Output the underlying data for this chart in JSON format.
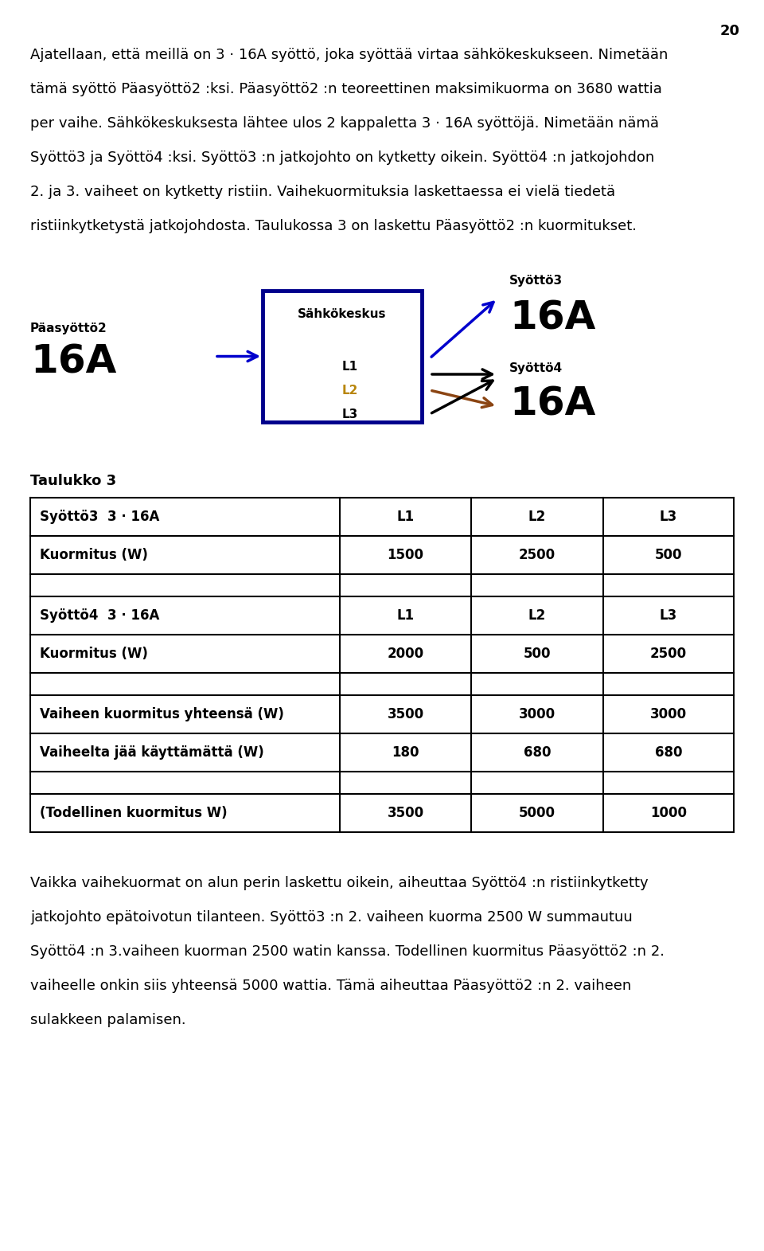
{
  "page_number": "20",
  "paragraph1_lines": [
    "Ajatellaan, että meillä on 3 · 16A syöttö, joka syöttää virtaa sähkökeskukseen. Nimetään",
    "tämä syöttö Päasyöttö2 :ksi. Päasyöttö2 :n teoreettinen maksimikuorma on 3680 wattia",
    "per vaihe. Sähkökeskuksesta lähtee ulos 2 kappaletta 3 · 16A syöttöjä. Nimetään nämä",
    "Syöttö3 ja Syöttö4 :ksi. Syöttö3 :n jatkojohto on kytketty oikein. Syöttö4 :n jatkojohdon",
    "2. ja 3. vaiheet on kytketty ristiin. Vaihekuormituksia laskettaessa ei vielä tiedetä",
    "ristiinkytketystä jatkojohdosta. Taulukossa 3 on laskettu Päasyöttö2 :n kuormitukset."
  ],
  "diagram": {
    "paasytto_label": "Päasyöttö2",
    "paasytto_value": "16A",
    "sahkokeskus_label": "Sähkökeskus",
    "syotto3_label": "Syöttö3",
    "syotto3_value": "16A",
    "syotto4_label": "Syöttö4",
    "syotto4_value": "16A",
    "box_color": "#00008B",
    "arrow_blue": "#0000CD",
    "arrow_black": "#000000",
    "arrow_brown": "#8B4513",
    "L2_color": "#B8860B"
  },
  "table_title": "Taulukko 3",
  "table_data": [
    [
      "Syöttö3  3 · 16A",
      "L1",
      "L2",
      "L3"
    ],
    [
      "Kuormitus (W)",
      "1500",
      "2500",
      "500"
    ],
    [
      "",
      "",
      "",
      ""
    ],
    [
      "Syöttö4  3 · 16A",
      "L1",
      "L2",
      "L3"
    ],
    [
      "Kuormitus (W)",
      "2000",
      "500",
      "2500"
    ],
    [
      "",
      "",
      "",
      ""
    ],
    [
      "Vaiheen kuormitus yhteensä (W)",
      "3500",
      "3000",
      "3000"
    ],
    [
      "Vaiheelta jää käyttämättä (W)",
      "180",
      "680",
      "680"
    ],
    [
      "",
      "",
      "",
      ""
    ],
    [
      "(Todellinen kuormitus W)",
      "3500",
      "5000",
      "1000"
    ]
  ],
  "paragraph2_lines": [
    "Vaikka vaihekuormat on alun perin laskettu oikein, aiheuttaa Syöttö4 :n ristiinkytketty",
    "jatkojohto epätoivotun tilanteen. Syöttö3 :n 2. vaiheen kuorma 2500 W summautuu",
    "Syöttö4 :n 3.vaiheen kuorman 2500 watin kanssa. Todellinen kuormitus Päasyöttö2 :n 2.",
    "vaiheelle onkin siis yhteensä 5000 wattia. Tämä aiheuttaa Päasyöttö2 :n 2. vaiheen",
    "sulakkeen palamisen."
  ],
  "bg_color": "#ffffff",
  "text_color": "#000000"
}
